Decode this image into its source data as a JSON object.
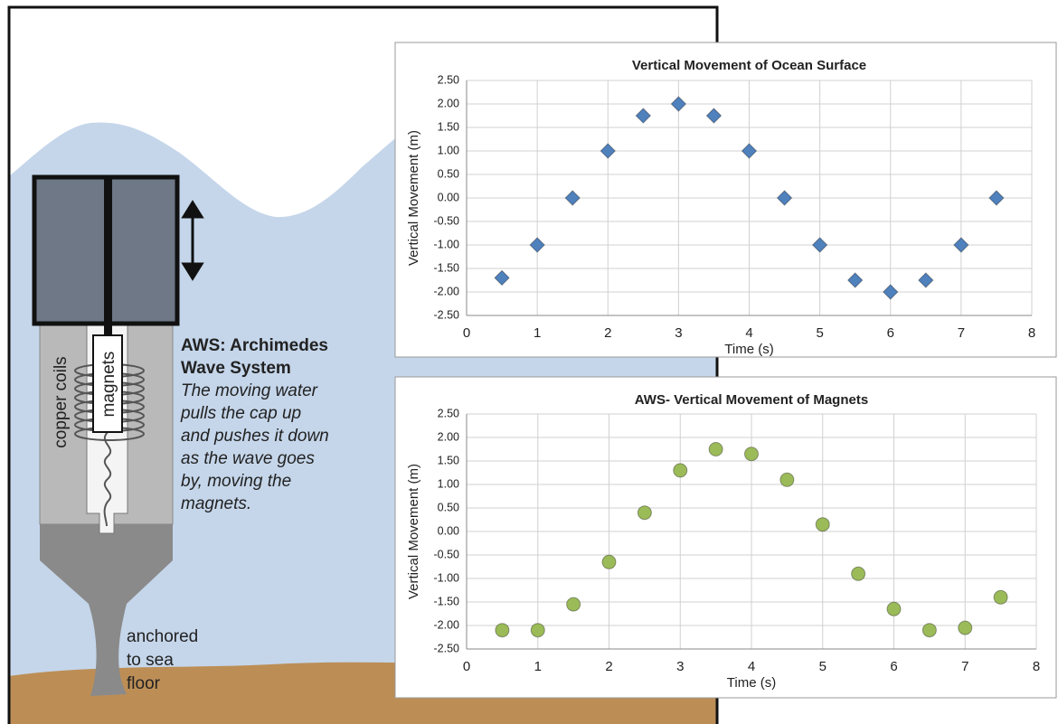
{
  "diagram": {
    "heading": [
      "AWS: Archimedes",
      "Wave System"
    ],
    "description": [
      "The moving water",
      "pulls the cap up",
      "and pushes it down",
      "as the wave goes",
      "by, moving the",
      "magnets."
    ],
    "labels": {
      "copper_coils": "copper coils",
      "magnets": "magnets",
      "anchor": [
        "anchored",
        "to sea",
        "floor"
      ]
    }
  },
  "chart_data": [
    {
      "type": "scatter",
      "title": "Vertical Movement of Ocean Surface",
      "x_label": "Time (s)",
      "y_label": "Vertical Movement (m)",
      "x": [
        0.5,
        1,
        1.5,
        2,
        2.5,
        3,
        3.5,
        4,
        4.5,
        5,
        5.5,
        6,
        6.5,
        7,
        7.5
      ],
      "series": [
        {
          "color": "#4f81bd",
          "marker": "diamond",
          "values": [
            -1.7,
            -1,
            0,
            1,
            1.75,
            2,
            1.75,
            1,
            0,
            -1,
            -1.75,
            -2,
            -1.75,
            -1,
            0
          ]
        }
      ],
      "xlim": [
        0,
        8
      ],
      "xticks": [
        0,
        1,
        2,
        3,
        4,
        5,
        6,
        7,
        8
      ],
      "ylim": [
        -2.5,
        2.5
      ],
      "yticks": [
        {
          "value": -2.5,
          "label": "-2.50"
        },
        {
          "value": -2,
          "label": "-2.00"
        },
        {
          "value": -1.5,
          "label": "-1.50"
        },
        {
          "value": -1,
          "label": "-1.00"
        },
        {
          "value": -0.5,
          "label": "-0.50"
        },
        {
          "value": 0,
          "label": "0.00"
        },
        {
          "value": 0.5,
          "label": "0.50"
        },
        {
          "value": 1,
          "label": "1.00"
        },
        {
          "value": 1.5,
          "label": "1.50"
        },
        {
          "value": 2,
          "label": "2.00"
        },
        {
          "value": 2.5,
          "label": "2.50"
        }
      ],
      "grid": true
    },
    {
      "type": "scatter",
      "title": "AWS- Vertical Movement of Magnets",
      "x_label": "Time (s)",
      "y_label": "Vertical Movement (m)",
      "x": [
        0.5,
        1,
        1.5,
        2,
        2.5,
        3,
        3.5,
        4,
        4.5,
        5,
        5.5,
        6,
        6.5,
        7,
        7.5
      ],
      "series": [
        {
          "color": "#9bbb59",
          "marker": "circle",
          "values": [
            -2.1,
            -2.1,
            -1.55,
            -0.65,
            0.4,
            1.3,
            1.75,
            1.65,
            1.1,
            0.15,
            -0.9,
            -1.65,
            -2.1,
            -2.05,
            -1.4
          ]
        }
      ],
      "xlim": [
        0,
        8
      ],
      "xticks": [
        0,
        1,
        2,
        3,
        4,
        5,
        6,
        7,
        8
      ],
      "ylim": [
        -2.5,
        2.5
      ],
      "yticks": [
        {
          "value": -2.5,
          "label": "-2.50"
        },
        {
          "value": -2,
          "label": "-2.00"
        },
        {
          "value": -1.5,
          "label": "-1.50"
        },
        {
          "value": -1,
          "label": "-1.00"
        },
        {
          "value": -0.5,
          "label": "-0.50"
        },
        {
          "value": 0,
          "label": "0.00"
        },
        {
          "value": 0.5,
          "label": "0.50"
        },
        {
          "value": 1,
          "label": "1.00"
        },
        {
          "value": 1.5,
          "label": "1.50"
        },
        {
          "value": 2,
          "label": "2.00"
        },
        {
          "value": 2.5,
          "label": "2.50"
        }
      ],
      "grid": true
    }
  ]
}
